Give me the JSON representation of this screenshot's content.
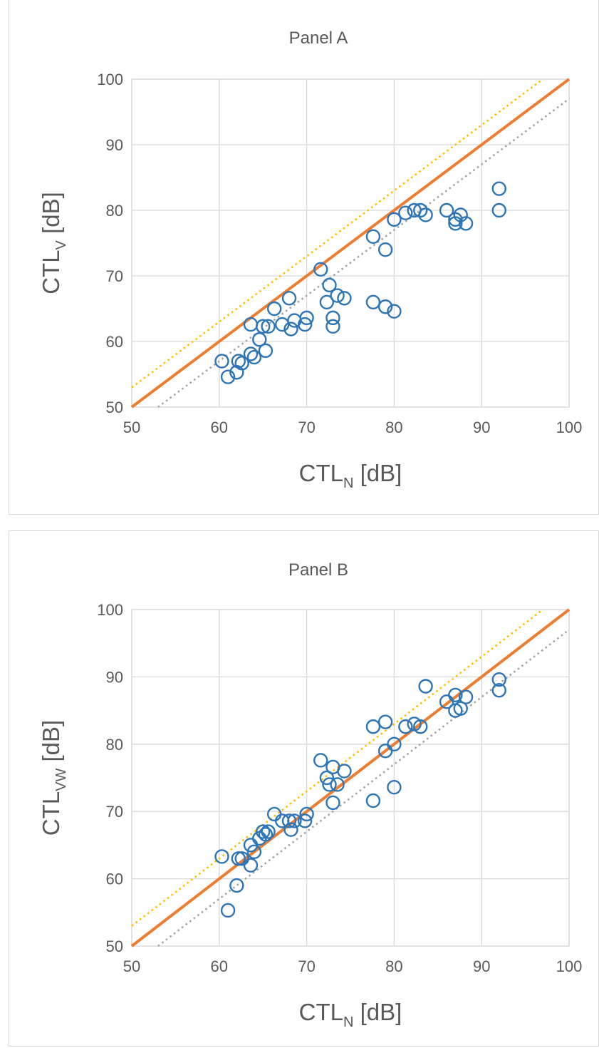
{
  "colors": {
    "marker": "#2e75b6",
    "equality_line": "#ed7d31",
    "upper_line": "#ffc000",
    "lower_line": "#a5a5a5",
    "grid": "#d9d9d9",
    "text": "#595959"
  },
  "chart_data": [
    {
      "type": "scatter",
      "title": "Panel A",
      "xlabel": {
        "main": "CTL",
        "sub": "N",
        "unit": " [dB]"
      },
      "ylabel": {
        "main": "CTL",
        "sub": "V",
        "unit": " [dB]"
      },
      "xlim": [
        50,
        100
      ],
      "ylim": [
        50,
        100
      ],
      "xticks": [
        "50",
        "60",
        "70",
        "80",
        "90",
        "100"
      ],
      "yticks": [
        "50",
        "60",
        "70",
        "80",
        "90",
        "100"
      ],
      "grid": true,
      "legend": "none",
      "lines": [
        {
          "style": "solid",
          "color": "#ed7d31",
          "points": [
            [
              50,
              50
            ],
            [
              100,
              100
            ]
          ]
        },
        {
          "style": "dotted",
          "color": "#ffc000",
          "points": [
            [
              50,
              53
            ],
            [
              97,
              100
            ]
          ]
        },
        {
          "style": "dotted",
          "color": "#a5a5a5",
          "points": [
            [
              53,
              50
            ],
            [
              100,
              97
            ]
          ]
        }
      ],
      "points": [
        [
          60.3,
          57.0
        ],
        [
          61.0,
          54.6
        ],
        [
          62.0,
          55.3
        ],
        [
          62.2,
          57.0
        ],
        [
          62.6,
          56.7
        ],
        [
          63.6,
          62.6
        ],
        [
          63.6,
          58.1
        ],
        [
          64.0,
          57.6
        ],
        [
          64.6,
          60.3
        ],
        [
          65.0,
          62.3
        ],
        [
          65.3,
          58.6
        ],
        [
          65.6,
          62.3
        ],
        [
          66.3,
          65.0
        ],
        [
          67.2,
          62.6
        ],
        [
          68.0,
          66.6
        ],
        [
          68.2,
          61.9
        ],
        [
          68.6,
          63.2
        ],
        [
          69.8,
          62.6
        ],
        [
          70.0,
          63.6
        ],
        [
          71.6,
          71.0
        ],
        [
          72.3,
          66.0
        ],
        [
          72.6,
          68.6
        ],
        [
          73.0,
          63.6
        ],
        [
          73.0,
          62.3
        ],
        [
          73.5,
          67.0
        ],
        [
          74.3,
          66.6
        ],
        [
          77.6,
          76.0
        ],
        [
          77.6,
          66.0
        ],
        [
          79.0,
          74.0
        ],
        [
          79.0,
          65.3
        ],
        [
          80.0,
          78.6
        ],
        [
          80.0,
          64.6
        ],
        [
          81.3,
          79.6
        ],
        [
          82.3,
          80.0
        ],
        [
          83.0,
          80.0
        ],
        [
          83.6,
          79.3
        ],
        [
          86.0,
          80.0
        ],
        [
          87.0,
          78.6
        ],
        [
          87.0,
          78.0
        ],
        [
          87.6,
          79.3
        ],
        [
          88.2,
          78.0
        ],
        [
          92.0,
          83.3
        ],
        [
          92.0,
          80.0
        ]
      ]
    },
    {
      "type": "scatter",
      "title": "Panel B",
      "xlabel": {
        "main": "CTL",
        "sub": "N",
        "unit": " [dB]"
      },
      "ylabel": {
        "main": "CTL",
        "sub": "VW",
        "unit": " [dB]"
      },
      "xlim": [
        50,
        100
      ],
      "ylim": [
        50,
        100
      ],
      "xticks": [
        "50",
        "60",
        "70",
        "80",
        "90",
        "100"
      ],
      "yticks": [
        "50",
        "60",
        "70",
        "80",
        "90",
        "100"
      ],
      "grid": true,
      "legend": "none",
      "lines": [
        {
          "style": "solid",
          "color": "#ed7d31",
          "points": [
            [
              50,
              50
            ],
            [
              100,
              100
            ]
          ]
        },
        {
          "style": "dotted",
          "color": "#ffc000",
          "points": [
            [
              50,
              53
            ],
            [
              97,
              100
            ]
          ]
        },
        {
          "style": "dotted",
          "color": "#a5a5a5",
          "points": [
            [
              53,
              50
            ],
            [
              100,
              97
            ]
          ]
        }
      ],
      "points": [
        [
          60.3,
          63.3
        ],
        [
          61.0,
          55.3
        ],
        [
          62.0,
          59.0
        ],
        [
          62.2,
          63.0
        ],
        [
          62.6,
          63.0
        ],
        [
          63.6,
          65.0
        ],
        [
          63.6,
          62.0
        ],
        [
          64.0,
          64.0
        ],
        [
          64.6,
          66.0
        ],
        [
          65.0,
          67.0
        ],
        [
          65.3,
          66.6
        ],
        [
          65.6,
          67.0
        ],
        [
          66.3,
          69.6
        ],
        [
          67.2,
          68.6
        ],
        [
          68.0,
          68.6
        ],
        [
          68.2,
          67.3
        ],
        [
          68.6,
          68.6
        ],
        [
          69.8,
          68.6
        ],
        [
          70.0,
          69.6
        ],
        [
          71.6,
          77.6
        ],
        [
          72.3,
          75.0
        ],
        [
          72.6,
          74.0
        ],
        [
          73.0,
          76.6
        ],
        [
          73.0,
          71.3
        ],
        [
          73.5,
          74.0
        ],
        [
          74.3,
          76.0
        ],
        [
          77.6,
          82.6
        ],
        [
          77.6,
          71.6
        ],
        [
          79.0,
          83.3
        ],
        [
          79.0,
          79.0
        ],
        [
          80.0,
          80.0
        ],
        [
          80.0,
          73.6
        ],
        [
          81.3,
          82.6
        ],
        [
          82.3,
          83.0
        ],
        [
          83.0,
          82.6
        ],
        [
          83.6,
          88.6
        ],
        [
          86.0,
          86.3
        ],
        [
          87.0,
          87.3
        ],
        [
          87.0,
          85.0
        ],
        [
          87.6,
          85.3
        ],
        [
          88.2,
          87.0
        ],
        [
          92.0,
          89.6
        ],
        [
          92.0,
          88.0
        ]
      ]
    }
  ]
}
